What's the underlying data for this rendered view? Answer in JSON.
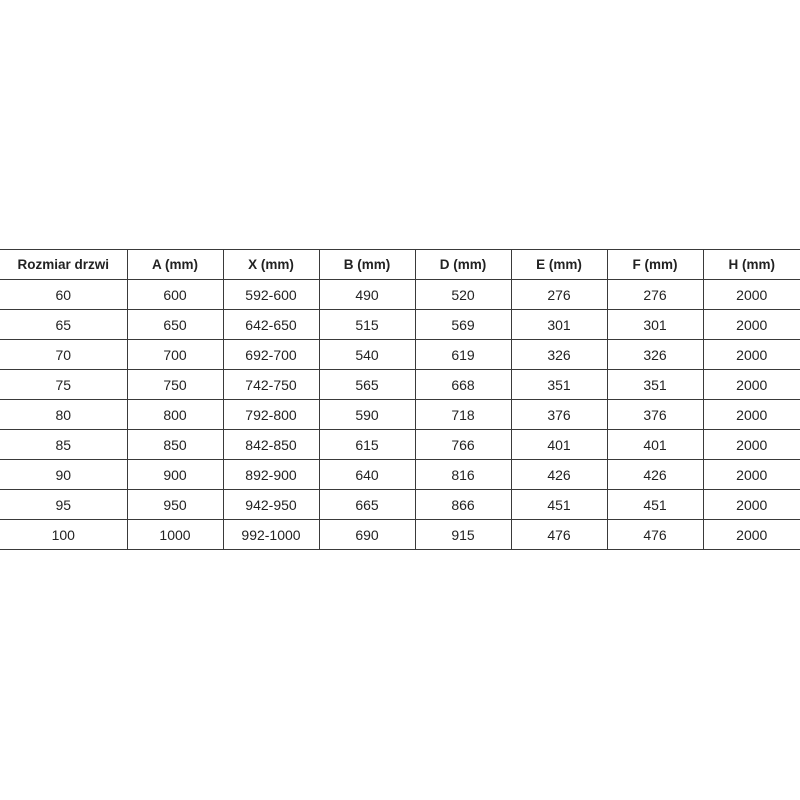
{
  "table": {
    "headers": [
      "Rozmiar drzwi",
      "A (mm)",
      "X (mm)",
      "B (mm)",
      "D (mm)",
      "E (mm)",
      "F (mm)",
      "H (mm)"
    ],
    "rows": [
      [
        "60",
        "600",
        "592-600",
        "490",
        "520",
        "276",
        "276",
        "2000"
      ],
      [
        "65",
        "650",
        "642-650",
        "515",
        "569",
        "301",
        "301",
        "2000"
      ],
      [
        "70",
        "700",
        "692-700",
        "540",
        "619",
        "326",
        "326",
        "2000"
      ],
      [
        "75",
        "750",
        "742-750",
        "565",
        "668",
        "351",
        "351",
        "2000"
      ],
      [
        "80",
        "800",
        "792-800",
        "590",
        "718",
        "376",
        "376",
        "2000"
      ],
      [
        "85",
        "850",
        "842-850",
        "615",
        "766",
        "401",
        "401",
        "2000"
      ],
      [
        "90",
        "900",
        "892-900",
        "640",
        "816",
        "426",
        "426",
        "2000"
      ],
      [
        "95",
        "950",
        "942-950",
        "665",
        "866",
        "451",
        "451",
        "2000"
      ],
      [
        "100",
        "1000",
        "992-1000",
        "690",
        "915",
        "476",
        "476",
        "2000"
      ]
    ]
  }
}
